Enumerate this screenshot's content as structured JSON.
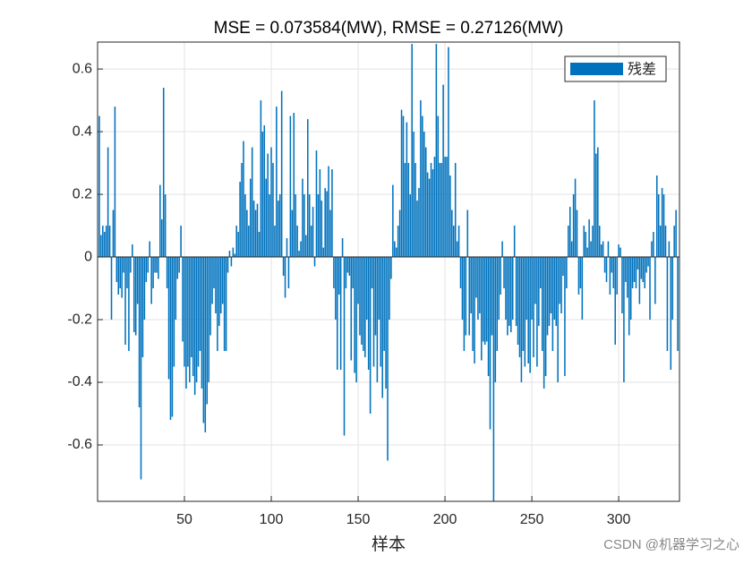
{
  "chart_data": {
    "type": "bar",
    "title": "MSE = 0.073584(MW), RMSE = 0.27126(MW)",
    "xlabel": "样本",
    "watermark": "CSDN @机器学习之心",
    "series": [
      {
        "name": "残差",
        "color": "#0072BD",
        "values": [
          0.45,
          0.07,
          0.1,
          0.08,
          0.1,
          0.35,
          0.1,
          -0.2,
          0.15,
          0.48,
          -0.08,
          -0.12,
          -0.1,
          -0.13,
          -0.05,
          -0.28,
          -0.1,
          -0.3,
          -0.05,
          0.04,
          -0.24,
          -0.25,
          -0.15,
          -0.48,
          -0.71,
          -0.32,
          -0.2,
          -0.08,
          -0.05,
          0.05,
          -0.15,
          -0.1,
          -0.05,
          -0.05,
          -0.07,
          0.23,
          0.12,
          0.54,
          0.2,
          -0.1,
          -0.39,
          -0.52,
          -0.51,
          -0.35,
          -0.2,
          -0.07,
          -0.05,
          0.1,
          -0.27,
          -0.35,
          -0.42,
          -0.35,
          -0.4,
          -0.32,
          -0.38,
          -0.44,
          -0.4,
          -0.35,
          -0.3,
          -0.42,
          -0.53,
          -0.56,
          -0.47,
          -0.4,
          -0.25,
          -0.15,
          -0.1,
          -0.18,
          -0.3,
          -0.22,
          -0.18,
          -0.15,
          -0.3,
          -0.3,
          -0.05,
          0.02,
          -0.03,
          0.03,
          0.01,
          0.1,
          0.08,
          0.24,
          0.3,
          0.37,
          0.2,
          0.15,
          0.1,
          0.25,
          0.35,
          0.18,
          0.15,
          0.17,
          0.08,
          0.5,
          0.4,
          0.42,
          0.25,
          0.33,
          0.2,
          0.35,
          0.3,
          0.1,
          0.48,
          0.18,
          0.2,
          0.53,
          -0.06,
          -0.13,
          0.06,
          -0.1,
          0.45,
          0.15,
          0.46,
          0.2,
          0.1,
          0.02,
          0.05,
          0.25,
          0.2,
          0.07,
          0.44,
          0.2,
          0.1,
          0.16,
          -0.03,
          0.34,
          0.2,
          0.28,
          0.18,
          0.03,
          0.22,
          0.21,
          0.29,
          0.15,
          0.28,
          -0.1,
          -0.2,
          -0.36,
          -0.12,
          -0.36,
          0.06,
          -0.57,
          -0.1,
          -0.05,
          -0.06,
          -0.33,
          -0.1,
          -0.37,
          -0.4,
          -0.15,
          -0.25,
          -0.28,
          -0.3,
          -0.32,
          -0.2,
          -0.36,
          -0.5,
          -0.1,
          -0.35,
          -0.25,
          -0.4,
          -0.2,
          -0.35,
          -0.45,
          -0.3,
          -0.42,
          -0.65,
          -0.2,
          -0.07,
          0.23,
          0.05,
          0.03,
          0.1,
          0.15,
          0.47,
          0.45,
          0.3,
          0.43,
          0.3,
          0.2,
          0.68,
          0.4,
          0.3,
          0.18,
          0.22,
          0.5,
          0.45,
          0.4,
          0.35,
          0.27,
          0.25,
          0.3,
          0.28,
          0.32,
          0.68,
          0.45,
          0.3,
          0.3,
          0.55,
          0.32,
          0.32,
          0.67,
          0.26,
          0.15,
          0.1,
          0.3,
          0.05,
          0.1,
          -0.1,
          -0.2,
          -0.3,
          -0.25,
          0.15,
          -0.25,
          -0.18,
          -0.3,
          -0.34,
          -0.13,
          -0.2,
          -0.18,
          -0.33,
          -0.27,
          -0.28,
          -0.27,
          -0.38,
          -0.55,
          -0.25,
          -0.78,
          -0.4,
          -0.3,
          -0.2,
          -0.12,
          0.05,
          -0.1,
          -0.2,
          -0.25,
          -0.22,
          -0.24,
          -0.2,
          0.1,
          -0.22,
          -0.28,
          -0.32,
          -0.4,
          -0.3,
          -0.35,
          -0.2,
          -0.34,
          -0.37,
          -0.2,
          -0.32,
          -0.15,
          -0.35,
          -0.22,
          -0.1,
          -0.3,
          -0.42,
          -0.38,
          -0.25,
          -0.22,
          -0.18,
          -0.3,
          -0.2,
          -0.22,
          -0.4,
          -0.15,
          -0.18,
          -0.06,
          -0.38,
          -0.1,
          0.1,
          0.16,
          0.05,
          0.2,
          0.25,
          0.15,
          -0.12,
          -0.1,
          -0.2,
          0.1,
          0.08,
          0.03,
          0.12,
          0.05,
          0.1,
          0.5,
          0.33,
          0.35,
          0.1,
          0.04,
          0.05,
          -0.05,
          -0.08,
          0.05,
          -0.12,
          -0.05,
          -0.1,
          -0.28,
          -0.12,
          0.04,
          0.03,
          -0.18,
          -0.4,
          -0.08,
          -0.13,
          -0.25,
          -0.2,
          -0.1,
          -0.08,
          -0.1,
          -0.04,
          -0.15,
          -0.07,
          -0.08,
          -0.1,
          -0.05,
          -0.03,
          -0.2,
          0.05,
          0.08,
          -0.15,
          0.26,
          0.2,
          0.1,
          0.22,
          0.2,
          0.1,
          -0.3,
          0.05,
          -0.36,
          -0.2,
          0.1,
          0.15,
          -0.3
        ]
      }
    ],
    "xlim": [
      0,
      335
    ],
    "xticks": [
      50,
      100,
      150,
      200,
      250,
      300
    ],
    "ylim": [
      -0.78,
      0.686
    ],
    "yticks": [
      -0.6,
      -0.4,
      -0.2,
      0,
      0.2,
      0.4,
      0.6
    ],
    "grid": true,
    "legend": "northeast"
  }
}
